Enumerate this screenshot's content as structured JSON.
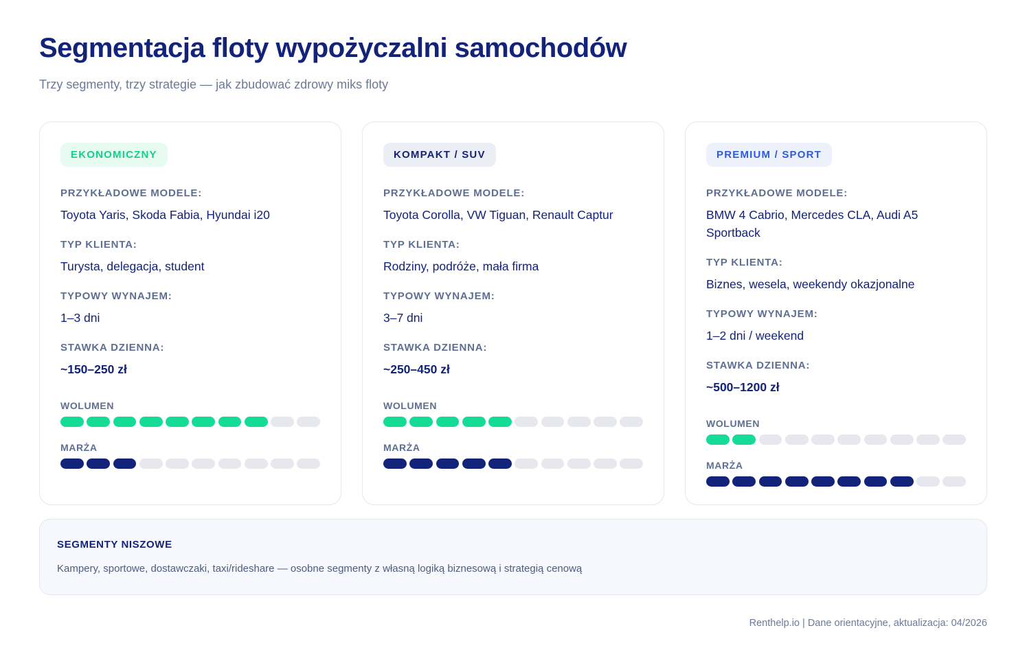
{
  "title": "Segmentacja floty wypożyczalni samochodów",
  "subtitle": "Trzy segmenty, trzy strategie — jak zbudować zdrowy miks floty",
  "labels": {
    "models": "PRZYKŁADOWE MODELE:",
    "client": "TYP KLIENTA:",
    "rental": "TYPOWY WYNAJEM:",
    "rate": "STAWKA DZIENNA:",
    "volume": "WOLUMEN",
    "margin": "MARŻA"
  },
  "segments": [
    {
      "badge": "EKONOMICZNY",
      "badge_color": "#12cf8e",
      "models": "Toyota Yaris, Skoda Fabia, Hyundai i20",
      "client": "Turysta, delegacja, student",
      "rental": "1–3 dni",
      "rate": "~150–250 zł",
      "volume": 8,
      "margin": 3,
      "scale_max": 10
    },
    {
      "badge": "KOMPAKT / SUV",
      "badge_color": "#13237a",
      "models": "Toyota Corolla, VW Tiguan, Renault Captur",
      "client": "Rodziny, podróże, mała firma",
      "rental": "3–7 dni",
      "rate": "~250–450 zł",
      "volume": 5,
      "margin": 5,
      "scale_max": 10
    },
    {
      "badge": "PREMIUM / SPORT",
      "badge_color": "#2d5be0",
      "models": "BMW 4 Cabrio, Mercedes CLA, Audi A5 Sportback",
      "client": "Biznes, wesela, weekendy okazjonalne",
      "rental": "1–2 dni / weekend",
      "rate": "~500–1200 zł",
      "volume": 2,
      "margin": 8,
      "scale_max": 10
    }
  ],
  "niche": {
    "title": "SEGMENTY NISZOWE",
    "text": "Kampery, sportowe, dostawczaki, taxi/rideshare — osobne segmenty z własną logiką biznesową i strategią cenową"
  },
  "footer": "Renthelp.io | Dane orientacyjne, aktualizacja: 04/2026"
}
